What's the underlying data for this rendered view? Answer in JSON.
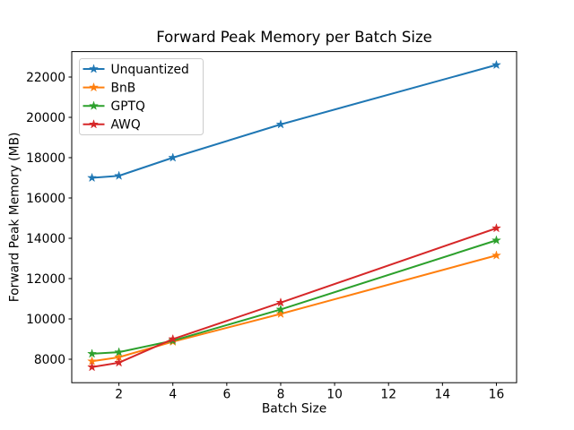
{
  "chart_data": {
    "type": "line",
    "title": "Forward Peak Memory per Batch Size",
    "xlabel": "Batch Size",
    "ylabel": "Forward Peak Memory (MB)",
    "x": [
      1,
      2,
      4,
      8,
      16
    ],
    "series": [
      {
        "name": "Unquantized",
        "color": "#1f77b4",
        "values": [
          17000,
          17100,
          18000,
          19650,
          22600
        ]
      },
      {
        "name": "BnB",
        "color": "#ff7f0e",
        "values": [
          7900,
          8100,
          8870,
          10250,
          13150
        ]
      },
      {
        "name": "GPTQ",
        "color": "#2ca02c",
        "values": [
          8270,
          8350,
          8920,
          10470,
          13900
        ]
      },
      {
        "name": "AWQ",
        "color": "#d62728",
        "values": [
          7610,
          7830,
          9000,
          10810,
          14500
        ]
      }
    ],
    "marker": "star",
    "x_ticks": [
      2,
      4,
      6,
      8,
      10,
      12,
      14,
      16
    ],
    "y_ticks": [
      8000,
      10000,
      12000,
      14000,
      16000,
      18000,
      20000,
      22000
    ],
    "xlim": [
      0.25,
      16.75
    ],
    "ylim": [
      6836,
      23262
    ],
    "grid": false,
    "legend_position": "upper-left",
    "background": "#ffffff",
    "axis_color": "#000000"
  }
}
